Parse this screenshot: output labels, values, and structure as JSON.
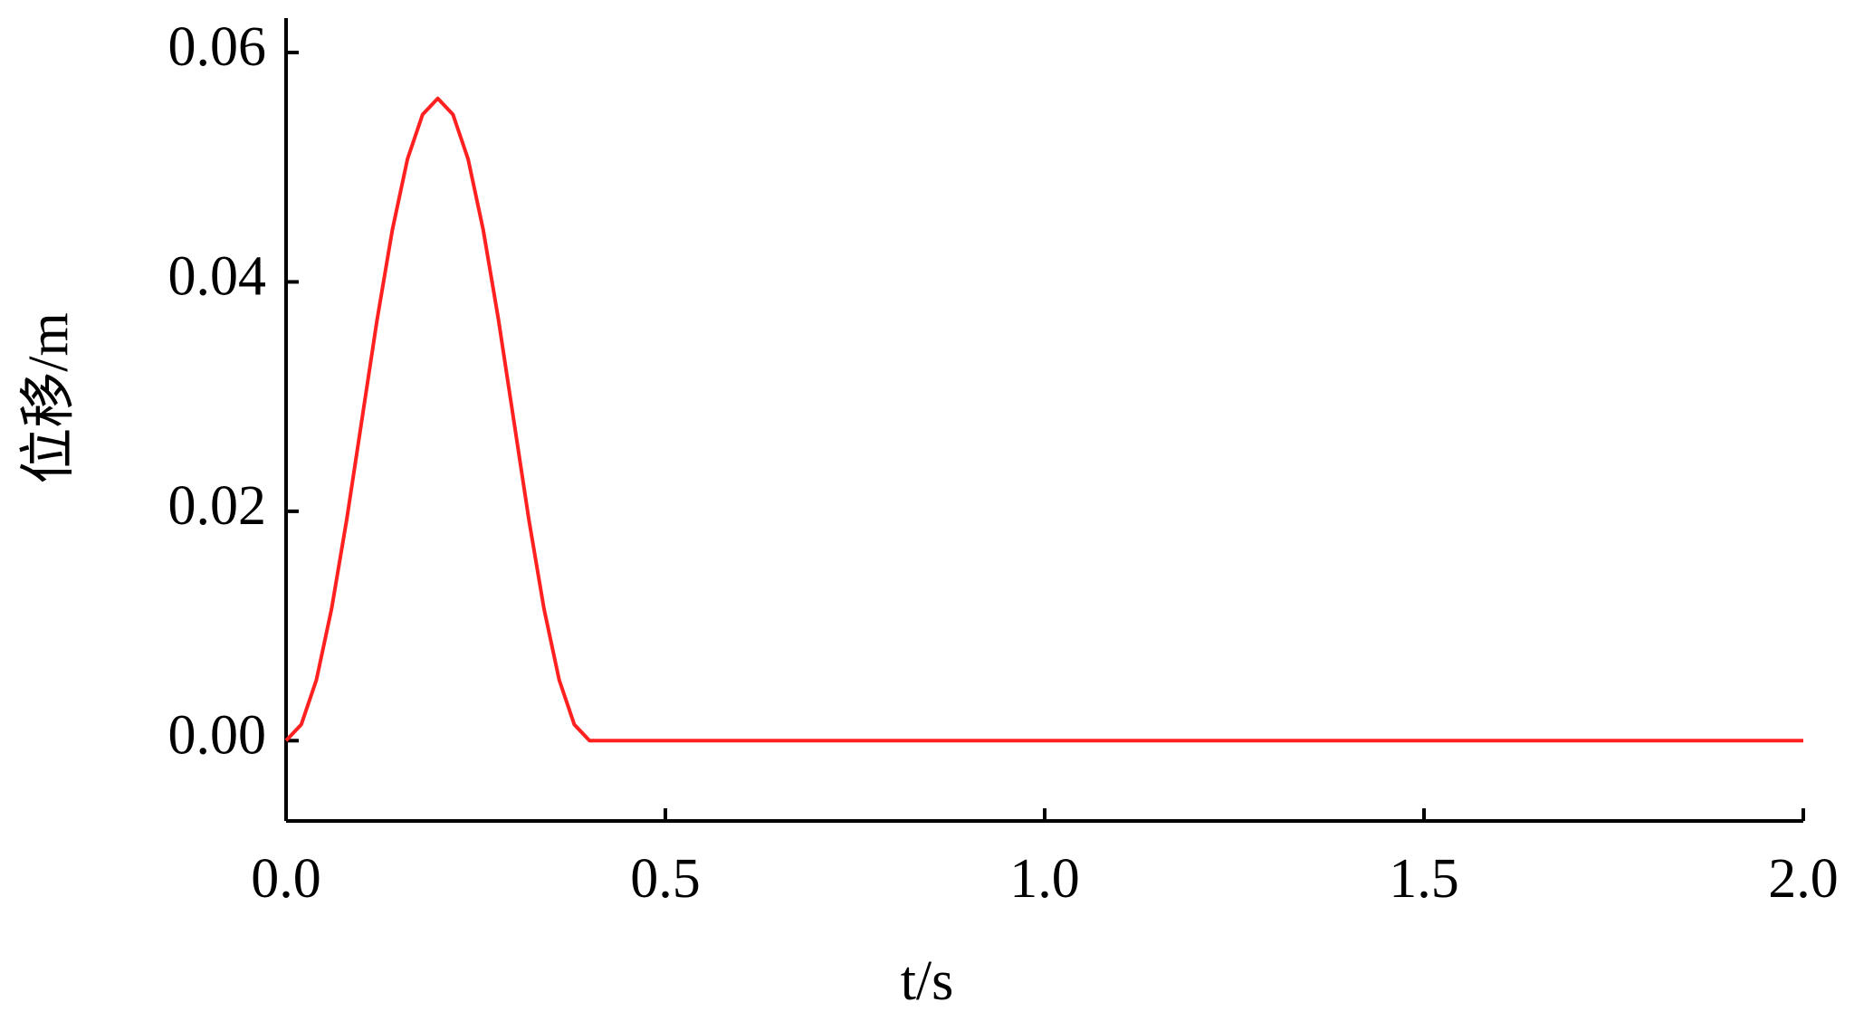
{
  "chart_data": {
    "type": "line",
    "y_label": "位移/m",
    "x_label": "t/s",
    "xlim": [
      0,
      2.0
    ],
    "ylim": [
      -0.007,
      0.063
    ],
    "xticks": [
      {
        "value": 0,
        "label": "0.0"
      },
      0.5,
      {
        "value": 1,
        "label": "1.0"
      },
      1.5,
      {
        "value": 2,
        "label": "2.0"
      }
    ],
    "yticks": [
      {
        "value": 0,
        "label": "0.00"
      },
      {
        "value": 0.02,
        "label": "0.02"
      },
      {
        "value": 0.04,
        "label": "0.04"
      },
      {
        "value": 0.06,
        "label": "0.06"
      }
    ],
    "series": [
      {
        "color": "#ff2020",
        "x": [
          0,
          0.02,
          0.04,
          0.06,
          0.08,
          0.1,
          0.12,
          0.14,
          0.16,
          0.18,
          0.2,
          0.22,
          0.24,
          0.26,
          0.28,
          0.3,
          0.32,
          0.34,
          0.36,
          0.38,
          0.4,
          0.5,
          1.0,
          1.5,
          2.0
        ],
        "values": [
          0,
          0.0014,
          0.0053,
          0.0115,
          0.0193,
          0.028,
          0.0367,
          0.0445,
          0.0507,
          0.0546,
          0.056,
          0.0546,
          0.0507,
          0.0445,
          0.0367,
          0.028,
          0.0193,
          0.0115,
          0.0053,
          0.0014,
          0,
          0,
          0,
          0,
          0
        ]
      }
    ]
  }
}
